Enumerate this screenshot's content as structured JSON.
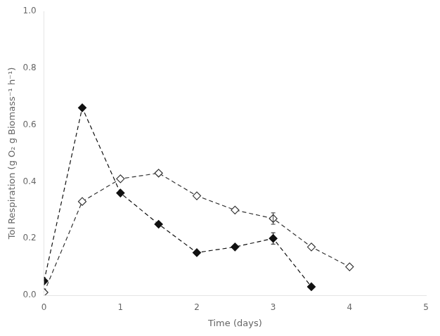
{
  "chart_data": {
    "type": "line",
    "xlabel": "Time (days)",
    "ylabel": "Tol Respiration (g O₂ g Biomass⁻¹ h⁻¹)",
    "xlim": [
      0,
      5
    ],
    "ylim": [
      0.0,
      1.0
    ],
    "xticks": [
      0,
      1,
      2,
      3,
      4,
      5
    ],
    "yticks": [
      {
        "value": 0.0,
        "label": "0.0"
      },
      0.2,
      0.4,
      0.6,
      0.8,
      {
        "value": 1.0,
        "label": "1.0"
      }
    ],
    "grid": false,
    "series": [
      {
        "x": [
          0,
          0.5,
          1.0,
          1.5,
          2.0,
          2.5,
          3.0,
          3.5
        ],
        "values": [
          0.05,
          0.66,
          0.36,
          0.25,
          0.15,
          0.17,
          0.2,
          0.03
        ],
        "yerr": [
          0.0,
          0.0,
          0.0,
          0.0,
          0.0,
          0.0,
          0.02,
          0.0
        ],
        "color": "#111111",
        "marker": "diamond",
        "line_style": "dashed"
      },
      {
        "x": [
          0,
          0.5,
          1.0,
          1.5,
          2.0,
          2.5,
          3.0,
          3.5,
          4.0
        ],
        "values": [
          0.01,
          0.33,
          0.41,
          0.43,
          0.35,
          0.3,
          0.27,
          0.17,
          0.1
        ],
        "yerr": [
          0.0,
          0.0,
          0.0,
          0.0,
          0.0,
          0.0,
          0.02,
          0.0,
          0.0
        ],
        "color": "#333333",
        "marker": "open_diamond",
        "line_style": "dashed"
      }
    ]
  }
}
